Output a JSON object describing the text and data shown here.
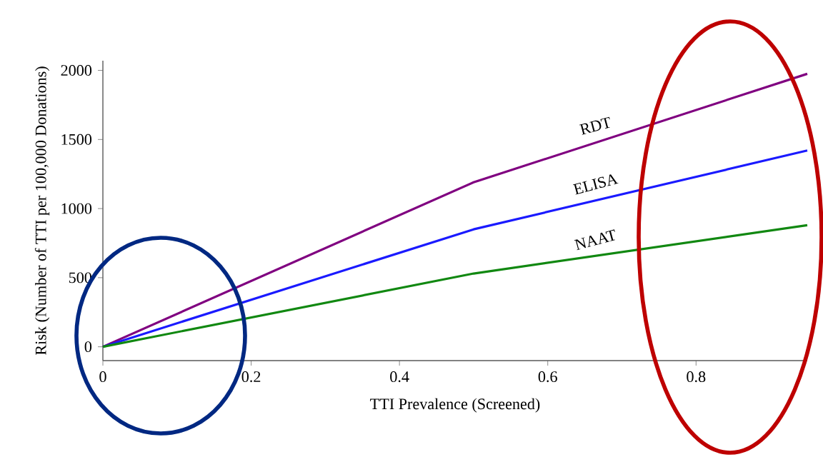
{
  "chart_data": {
    "type": "line",
    "xlabel": "TTI Prevalence (Screened)",
    "ylabel": "Risk (Number of TTI per 100,000 Donations)",
    "x": [
      0,
      0.5,
      0.95
    ],
    "series": [
      {
        "name": "RDT",
        "color": "#800080",
        "values": [
          0,
          1190,
          1975
        ]
      },
      {
        "name": "ELISA",
        "color": "#1a1aff",
        "values": [
          0,
          850,
          1420
        ]
      },
      {
        "name": "NAAT",
        "color": "#118811",
        "values": [
          0,
          530,
          880
        ]
      }
    ],
    "xlim": [
      0,
      0.95
    ],
    "ylim": [
      -100,
      2070
    ],
    "xticks": [
      0,
      0.2,
      0.4,
      0.6,
      0.8
    ],
    "yticks": [
      0,
      500,
      1000,
      1500,
      2000
    ],
    "grid": false,
    "legend": false,
    "marker": "none",
    "line_style": "solid"
  }
}
